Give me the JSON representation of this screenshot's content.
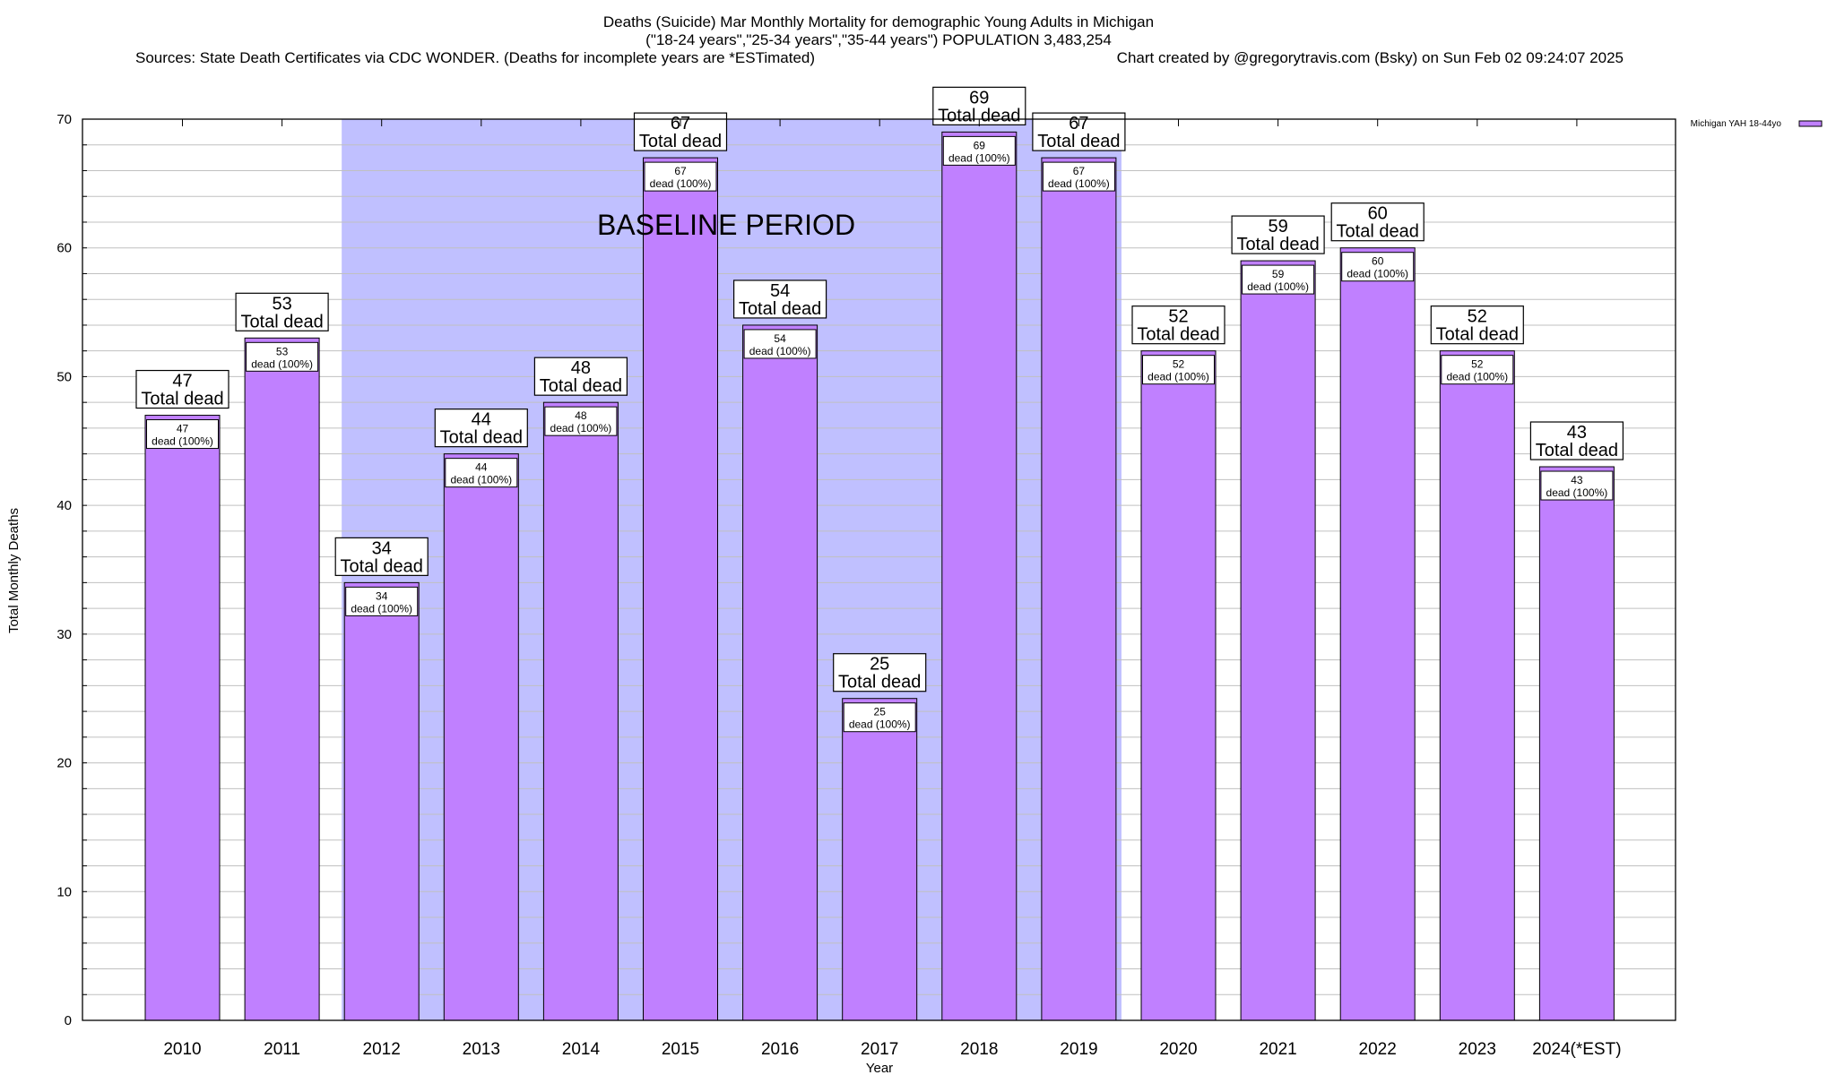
{
  "chart_data": {
    "type": "bar",
    "title": "Deaths (Suicide) Mar Monthly Mortality for demographic Young Adults in Michigan",
    "subtitle": "(\"18-24 years\",\"25-34 years\",\"35-44 years\") POPULATION 3,483,254",
    "sources": "Sources: State Death Certificates via CDC WONDER. (Deaths for incomplete years are *ESTimated)",
    "credit": "Chart created by @gregorytravis.com (Bsky) on Sun Feb 02 09:24:07 2025",
    "xlabel": "Year",
    "ylabel": "Total Monthly Deaths",
    "ylim": [
      0,
      70
    ],
    "yticks": [
      0,
      10,
      20,
      30,
      40,
      50,
      60,
      70
    ],
    "grid": true,
    "legend_position": "top-right",
    "categories": [
      "2010",
      "2011",
      "2012",
      "2013",
      "2014",
      "2015",
      "2016",
      "2017",
      "2018",
      "2019",
      "2020",
      "2021",
      "2022",
      "2023",
      "2024(*EST)"
    ],
    "series": [
      {
        "name": "Michigan YAH 18-44yo",
        "color": "#c080ff",
        "values": [
          47,
          53,
          34,
          44,
          48,
          67,
          54,
          25,
          69,
          67,
          52,
          59,
          60,
          52,
          43
        ]
      }
    ],
    "bar_label_suffix": "Total dead",
    "inner_label_suffix": "dead (100%)",
    "baseline_period": {
      "label": "BASELINE PERIOD",
      "from": "2012",
      "to": "2019",
      "color": "#c0c0ff"
    }
  }
}
